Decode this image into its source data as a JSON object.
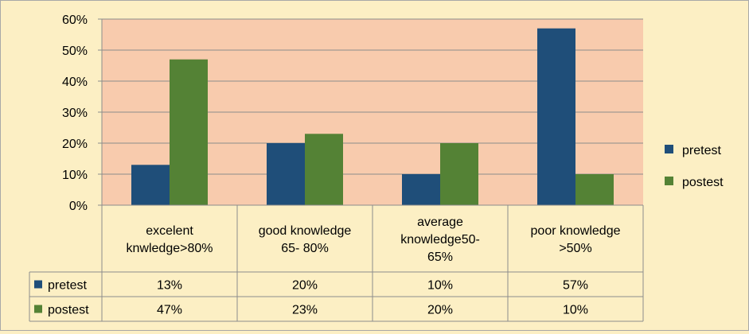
{
  "chart_data": {
    "type": "bar",
    "categories": [
      [
        "excelent",
        "knwledge>80%"
      ],
      [
        "good knowledge",
        "65- 80%"
      ],
      [
        "average",
        "knowledge50-",
        "65%"
      ],
      [
        "poor knowledge",
        ">50%"
      ]
    ],
    "series": [
      {
        "name": "pretest",
        "values": [
          13,
          20,
          10,
          57
        ],
        "table_values": [
          "13%",
          "20%",
          "10%",
          "57%"
        ],
        "color": "#1f4e79"
      },
      {
        "name": "postest",
        "values": [
          47,
          23,
          20,
          10
        ],
        "table_values": [
          "47%",
          "23%",
          "20%",
          "10%"
        ],
        "color": "#548235"
      }
    ],
    "ylim": [
      0,
      60
    ],
    "yticks": [
      "0%",
      "10%",
      "20%",
      "30%",
      "40%",
      "50%",
      "60%"
    ],
    "plot_background": "#f8cbad",
    "page_background": "#fcefc4",
    "grid": true,
    "legend_position": "right",
    "data_table": true
  }
}
